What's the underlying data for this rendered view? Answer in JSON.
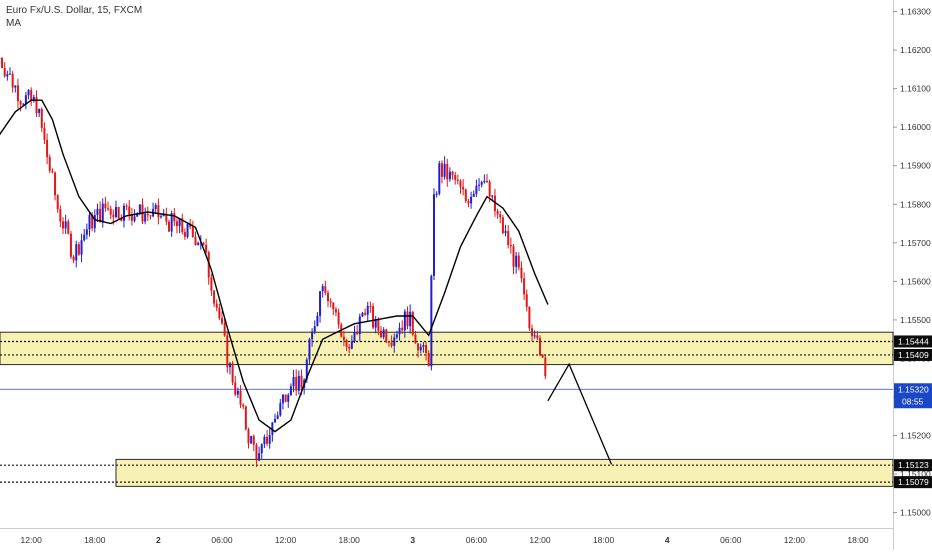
{
  "symbol": {
    "title": "Euro Fx/U.S. Dollar, 15, FXCM",
    "indicator": "MA"
  },
  "colors": {
    "up": "#1f1fd1",
    "down": "#e01818",
    "ma": "#000000",
    "zone_fill": "#f7f2b4",
    "zone_border": "#2a2a2a",
    "price_line": "#2b4bd6",
    "price_label_bg": "#1a47c5",
    "level_label_bg": "#0c0c0c",
    "projection": "#000000",
    "axis_text": "#333333",
    "axis_line": "#cccccc"
  },
  "chart_data": {
    "type": "candlestick",
    "y_ticks": [
      "1.16300",
      "1.16200",
      "1.16100",
      "1.16000",
      "1.15900",
      "1.15800",
      "1.15700",
      "1.15600",
      "1.15500",
      "1.15400",
      "1.15300",
      "1.15200",
      "1.15100",
      "1.15000"
    ],
    "ylim": [
      1.1496,
      1.1633
    ],
    "x_ticks": [
      {
        "label": "12:00",
        "bar": 8
      },
      {
        "label": "18:00",
        "bar": 32
      },
      {
        "label": "2",
        "bar": 56
      },
      {
        "label": "06:00",
        "bar": 80
      },
      {
        "label": "12:00",
        "bar": 104
      },
      {
        "label": "18:00",
        "bar": 128
      },
      {
        "label": "3",
        "bar": 152
      },
      {
        "label": "06:00",
        "bar": 176
      },
      {
        "label": "12:00",
        "bar": 200
      },
      {
        "label": "18:00",
        "bar": 224
      },
      {
        "label": "4",
        "bar": 248
      },
      {
        "label": "06:00",
        "bar": 272
      },
      {
        "label": "12:00",
        "bar": 296
      },
      {
        "label": "18:00",
        "bar": 320
      }
    ],
    "x_bars": [
      -4,
      330
    ],
    "zones": [
      {
        "name": "upper-zone",
        "top": 1.15468,
        "bottom": 1.15384,
        "start_bar": -4
      },
      {
        "name": "lower-zone",
        "top": 1.15138,
        "bottom": 1.15068,
        "start_bar": 40
      }
    ],
    "levels": [
      {
        "value": 1.15444,
        "label": "1.15444",
        "start_bar": -4
      },
      {
        "value": 1.15409,
        "label": "1.15409",
        "start_bar": -4
      },
      {
        "value": 1.15123,
        "label": "1.15123",
        "start_bar": -4
      },
      {
        "value": 1.15079,
        "label": "1.15079",
        "start_bar": -4
      }
    ],
    "current_price": {
      "value": 1.1532,
      "label": "1.15320",
      "countdown": "08:55"
    },
    "projection": [
      {
        "bar": 203,
        "price": 1.1529
      },
      {
        "bar": 211,
        "price": 1.15385
      },
      {
        "bar": 227,
        "price": 1.15125
      }
    ],
    "anchors": [
      {
        "bar": -4,
        "price": 1.1618
      },
      {
        "bar": 4,
        "price": 1.1608
      },
      {
        "bar": 10,
        "price": 1.1606
      },
      {
        "bar": 18,
        "price": 1.1579
      },
      {
        "bar": 24,
        "price": 1.1567
      },
      {
        "bar": 30,
        "price": 1.1575
      },
      {
        "bar": 36,
        "price": 1.1579
      },
      {
        "bar": 46,
        "price": 1.1578
      },
      {
        "bar": 56,
        "price": 1.1577
      },
      {
        "bar": 66,
        "price": 1.1573
      },
      {
        "bar": 72,
        "price": 1.1571
      },
      {
        "bar": 78,
        "price": 1.1554
      },
      {
        "bar": 82,
        "price": 1.154
      },
      {
        "bar": 86,
        "price": 1.153
      },
      {
        "bar": 90,
        "price": 1.152
      },
      {
        "bar": 94,
        "price": 1.1514
      },
      {
        "bar": 98,
        "price": 1.1521
      },
      {
        "bar": 102,
        "price": 1.1528
      },
      {
        "bar": 106,
        "price": 1.1535
      },
      {
        "bar": 110,
        "price": 1.1532
      },
      {
        "bar": 114,
        "price": 1.1546
      },
      {
        "bar": 118,
        "price": 1.1561
      },
      {
        "bar": 122,
        "price": 1.1553
      },
      {
        "bar": 128,
        "price": 1.1541
      },
      {
        "bar": 134,
        "price": 1.1554
      },
      {
        "bar": 138,
        "price": 1.1548
      },
      {
        "bar": 144,
        "price": 1.1546
      },
      {
        "bar": 150,
        "price": 1.1551
      },
      {
        "bar": 156,
        "price": 1.1541
      },
      {
        "bar": 158,
        "price": 1.154
      },
      {
        "bar": 160,
        "price": 1.158
      },
      {
        "bar": 162,
        "price": 1.1589
      },
      {
        "bar": 168,
        "price": 1.1586
      },
      {
        "bar": 172,
        "price": 1.1581
      },
      {
        "bar": 178,
        "price": 1.1588
      },
      {
        "bar": 182,
        "price": 1.158
      },
      {
        "bar": 188,
        "price": 1.157
      },
      {
        "bar": 192,
        "price": 1.1562
      },
      {
        "bar": 196,
        "price": 1.1548
      },
      {
        "bar": 199,
        "price": 1.1548
      },
      {
        "bar": 201,
        "price": 1.1538
      },
      {
        "bar": 203,
        "price": 1.153
      }
    ],
    "ma": [
      {
        "bar": -4,
        "price": 1.1598
      },
      {
        "bar": 2,
        "price": 1.1604
      },
      {
        "bar": 8,
        "price": 1.1607
      },
      {
        "bar": 12,
        "price": 1.1607
      },
      {
        "bar": 16,
        "price": 1.1602
      },
      {
        "bar": 20,
        "price": 1.1593
      },
      {
        "bar": 26,
        "price": 1.1582
      },
      {
        "bar": 32,
        "price": 1.1576
      },
      {
        "bar": 38,
        "price": 1.1575
      },
      {
        "bar": 44,
        "price": 1.1577
      },
      {
        "bar": 52,
        "price": 1.1578
      },
      {
        "bar": 62,
        "price": 1.1577
      },
      {
        "bar": 70,
        "price": 1.1574
      },
      {
        "bar": 76,
        "price": 1.1563
      },
      {
        "bar": 82,
        "price": 1.1548
      },
      {
        "bar": 88,
        "price": 1.1534
      },
      {
        "bar": 94,
        "price": 1.1524
      },
      {
        "bar": 100,
        "price": 1.1521
      },
      {
        "bar": 106,
        "price": 1.1524
      },
      {
        "bar": 112,
        "price": 1.1535
      },
      {
        "bar": 118,
        "price": 1.1545
      },
      {
        "bar": 124,
        "price": 1.1547
      },
      {
        "bar": 130,
        "price": 1.1549
      },
      {
        "bar": 138,
        "price": 1.155
      },
      {
        "bar": 146,
        "price": 1.1551
      },
      {
        "bar": 152,
        "price": 1.1551
      },
      {
        "bar": 158,
        "price": 1.1546
      },
      {
        "bar": 164,
        "price": 1.1557
      },
      {
        "bar": 170,
        "price": 1.1569
      },
      {
        "bar": 176,
        "price": 1.1577
      },
      {
        "bar": 180,
        "price": 1.1582
      },
      {
        "bar": 186,
        "price": 1.1579
      },
      {
        "bar": 192,
        "price": 1.1573
      },
      {
        "bar": 198,
        "price": 1.1562
      },
      {
        "bar": 203,
        "price": 1.1554
      }
    ]
  }
}
